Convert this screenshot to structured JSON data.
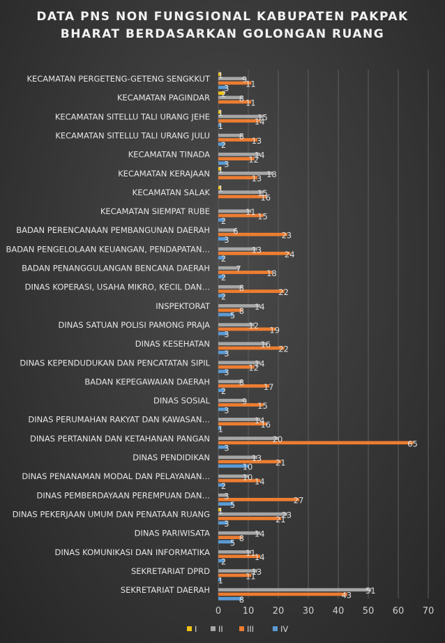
{
  "chart_data": {
    "type": "bar",
    "orientation": "horizontal",
    "title_line1": "DATA PNS NON FUNGSIONAL KABUPATEN PAKPAK",
    "title_line2": "BHARAT BERDASARKAN GOLONGAN RUANG",
    "xlim": [
      0,
      70
    ],
    "xticks": [
      0,
      10,
      20,
      30,
      40,
      50,
      60,
      70
    ],
    "grid": true,
    "legend_position": "bottom",
    "categories": [
      "KECAMATAN PERGETENG-GETENG SENGKKUT",
      "KECAMATAN PAGINDAR",
      "KECAMATAN SITELLU TALI URANG JEHE",
      "KECAMATAN SITELLU TALI URANG JULU",
      "KECAMATAN TINADA",
      "KECAMATAN KERAJAAN",
      "KECAMATAN SALAK",
      "KECAMATAN SIEMPAT RUBE",
      "BADAN PERENCANAAN PEMBANGUNAN DAERAH",
      "BADAN PENGELOLAAN KEUANGAN, PENDAPATAN…",
      "BADAN PENANGGULANGAN BENCANA DAERAH",
      "DINAS KOPERASI, USAHA MIKRO, KECIL DAN…",
      "INSPEKTORAT",
      "DINAS SATUAN POLISI PAMONG PRAJA",
      "DINAS KESEHATAN",
      "DINAS KEPENDUDUKAN DAN PENCATATAN SIPIL",
      "BADAN KEPEGAWAIAN DAERAH",
      "DINAS SOSIAL",
      "DINAS PERUMAHAN RAKYAT DAN KAWASAN…",
      "DINAS PERTANIAN DAN KETAHANAN PANGAN",
      "DINAS PENDIDIKAN",
      "DINAS PENANAMAN MODAL DAN PELAYANAN…",
      "DINAS PEMBERDAYAAN PEREMPUAN DAN…",
      "DINAS PEKERJAAN UMUM DAN PENATAAN RUANG",
      "DINAS PARIWISATA",
      "DINAS KOMUNIKASI DAN INFORMATIKA",
      "SEKRETARIAT DPRD",
      "SEKRETARIAT DAERAH"
    ],
    "series": [
      {
        "name": "I",
        "color": "#f2c318",
        "values": [
          1,
          2,
          1,
          null,
          null,
          1,
          1,
          null,
          null,
          null,
          null,
          null,
          null,
          null,
          null,
          null,
          null,
          null,
          null,
          null,
          null,
          null,
          null,
          1,
          null,
          null,
          null,
          null
        ]
      },
      {
        "name": "II",
        "color": "#a6a6a6",
        "values": [
          9,
          8,
          15,
          8,
          14,
          18,
          15,
          11,
          6,
          13,
          7,
          8,
          14,
          12,
          16,
          14,
          8,
          9,
          14,
          20,
          13,
          10,
          3,
          23,
          14,
          11,
          13,
          51
        ]
      },
      {
        "name": "III",
        "color": "#ed7d31",
        "values": [
          11,
          11,
          14,
          13,
          12,
          13,
          16,
          15,
          23,
          24,
          18,
          22,
          8,
          19,
          22,
          12,
          17,
          15,
          16,
          65,
          21,
          14,
          27,
          21,
          8,
          14,
          11,
          43
        ]
      },
      {
        "name": "IV",
        "color": "#5b9bd5",
        "values": [
          3,
          null,
          1,
          2,
          3,
          null,
          null,
          2,
          3,
          2,
          2,
          2,
          5,
          3,
          3,
          3,
          2,
          3,
          1,
          3,
          10,
          2,
          5,
          3,
          5,
          2,
          1,
          8
        ]
      }
    ]
  }
}
